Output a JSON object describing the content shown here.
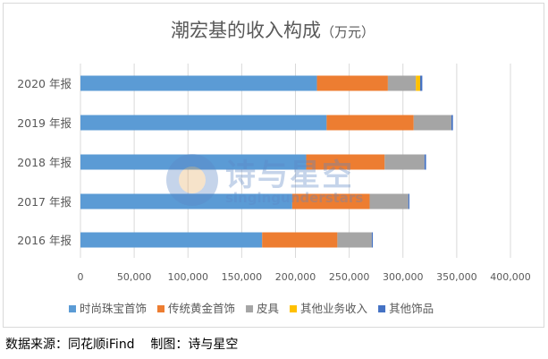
{
  "chart_data": {
    "type": "bar",
    "orientation": "horizontal",
    "stacked": true,
    "title": "潮宏基的收入构成",
    "title_unit": "（万元）",
    "categories": [
      "2016 年报",
      "2017 年报",
      "2018 年报",
      "2019 年报",
      "2020 年报"
    ],
    "series": [
      {
        "name": "时尚珠宝首饰",
        "color": "#5b9bd5",
        "values": [
          169000,
          197000,
          210000,
          229000,
          220000
        ]
      },
      {
        "name": "传统黄金首饰",
        "color": "#ed7d31",
        "values": [
          70000,
          72000,
          73000,
          81000,
          66000
        ]
      },
      {
        "name": "皮具",
        "color": "#a5a5a5",
        "values": [
          32000,
          36000,
          37000,
          35000,
          26000
        ]
      },
      {
        "name": "其他业务收入",
        "color": "#ffc000",
        "values": [
          0,
          0,
          0,
          0,
          4000
        ]
      },
      {
        "name": "其他饰品",
        "color": "#4472c4",
        "values": [
          1000,
          1000,
          1500,
          1500,
          2000
        ]
      }
    ],
    "xlim": [
      0,
      400000
    ],
    "x_ticks": [
      0,
      50000,
      100000,
      150000,
      200000,
      250000,
      300000,
      350000,
      400000
    ],
    "x_tick_labels": [
      "0",
      "50,000",
      "100,000",
      "150,000",
      "200,000",
      "250,000",
      "300,000",
      "350,000",
      "400,000"
    ],
    "grid": true,
    "legend_position": "bottom"
  },
  "watermark": {
    "cn": "诗与星空",
    "en": "singingunderstars"
  },
  "source_note": "数据来源：同花顺iFind    制图：诗与星空",
  "colors": {
    "grid": "#d9d9d9",
    "axis_text": "#595959"
  }
}
